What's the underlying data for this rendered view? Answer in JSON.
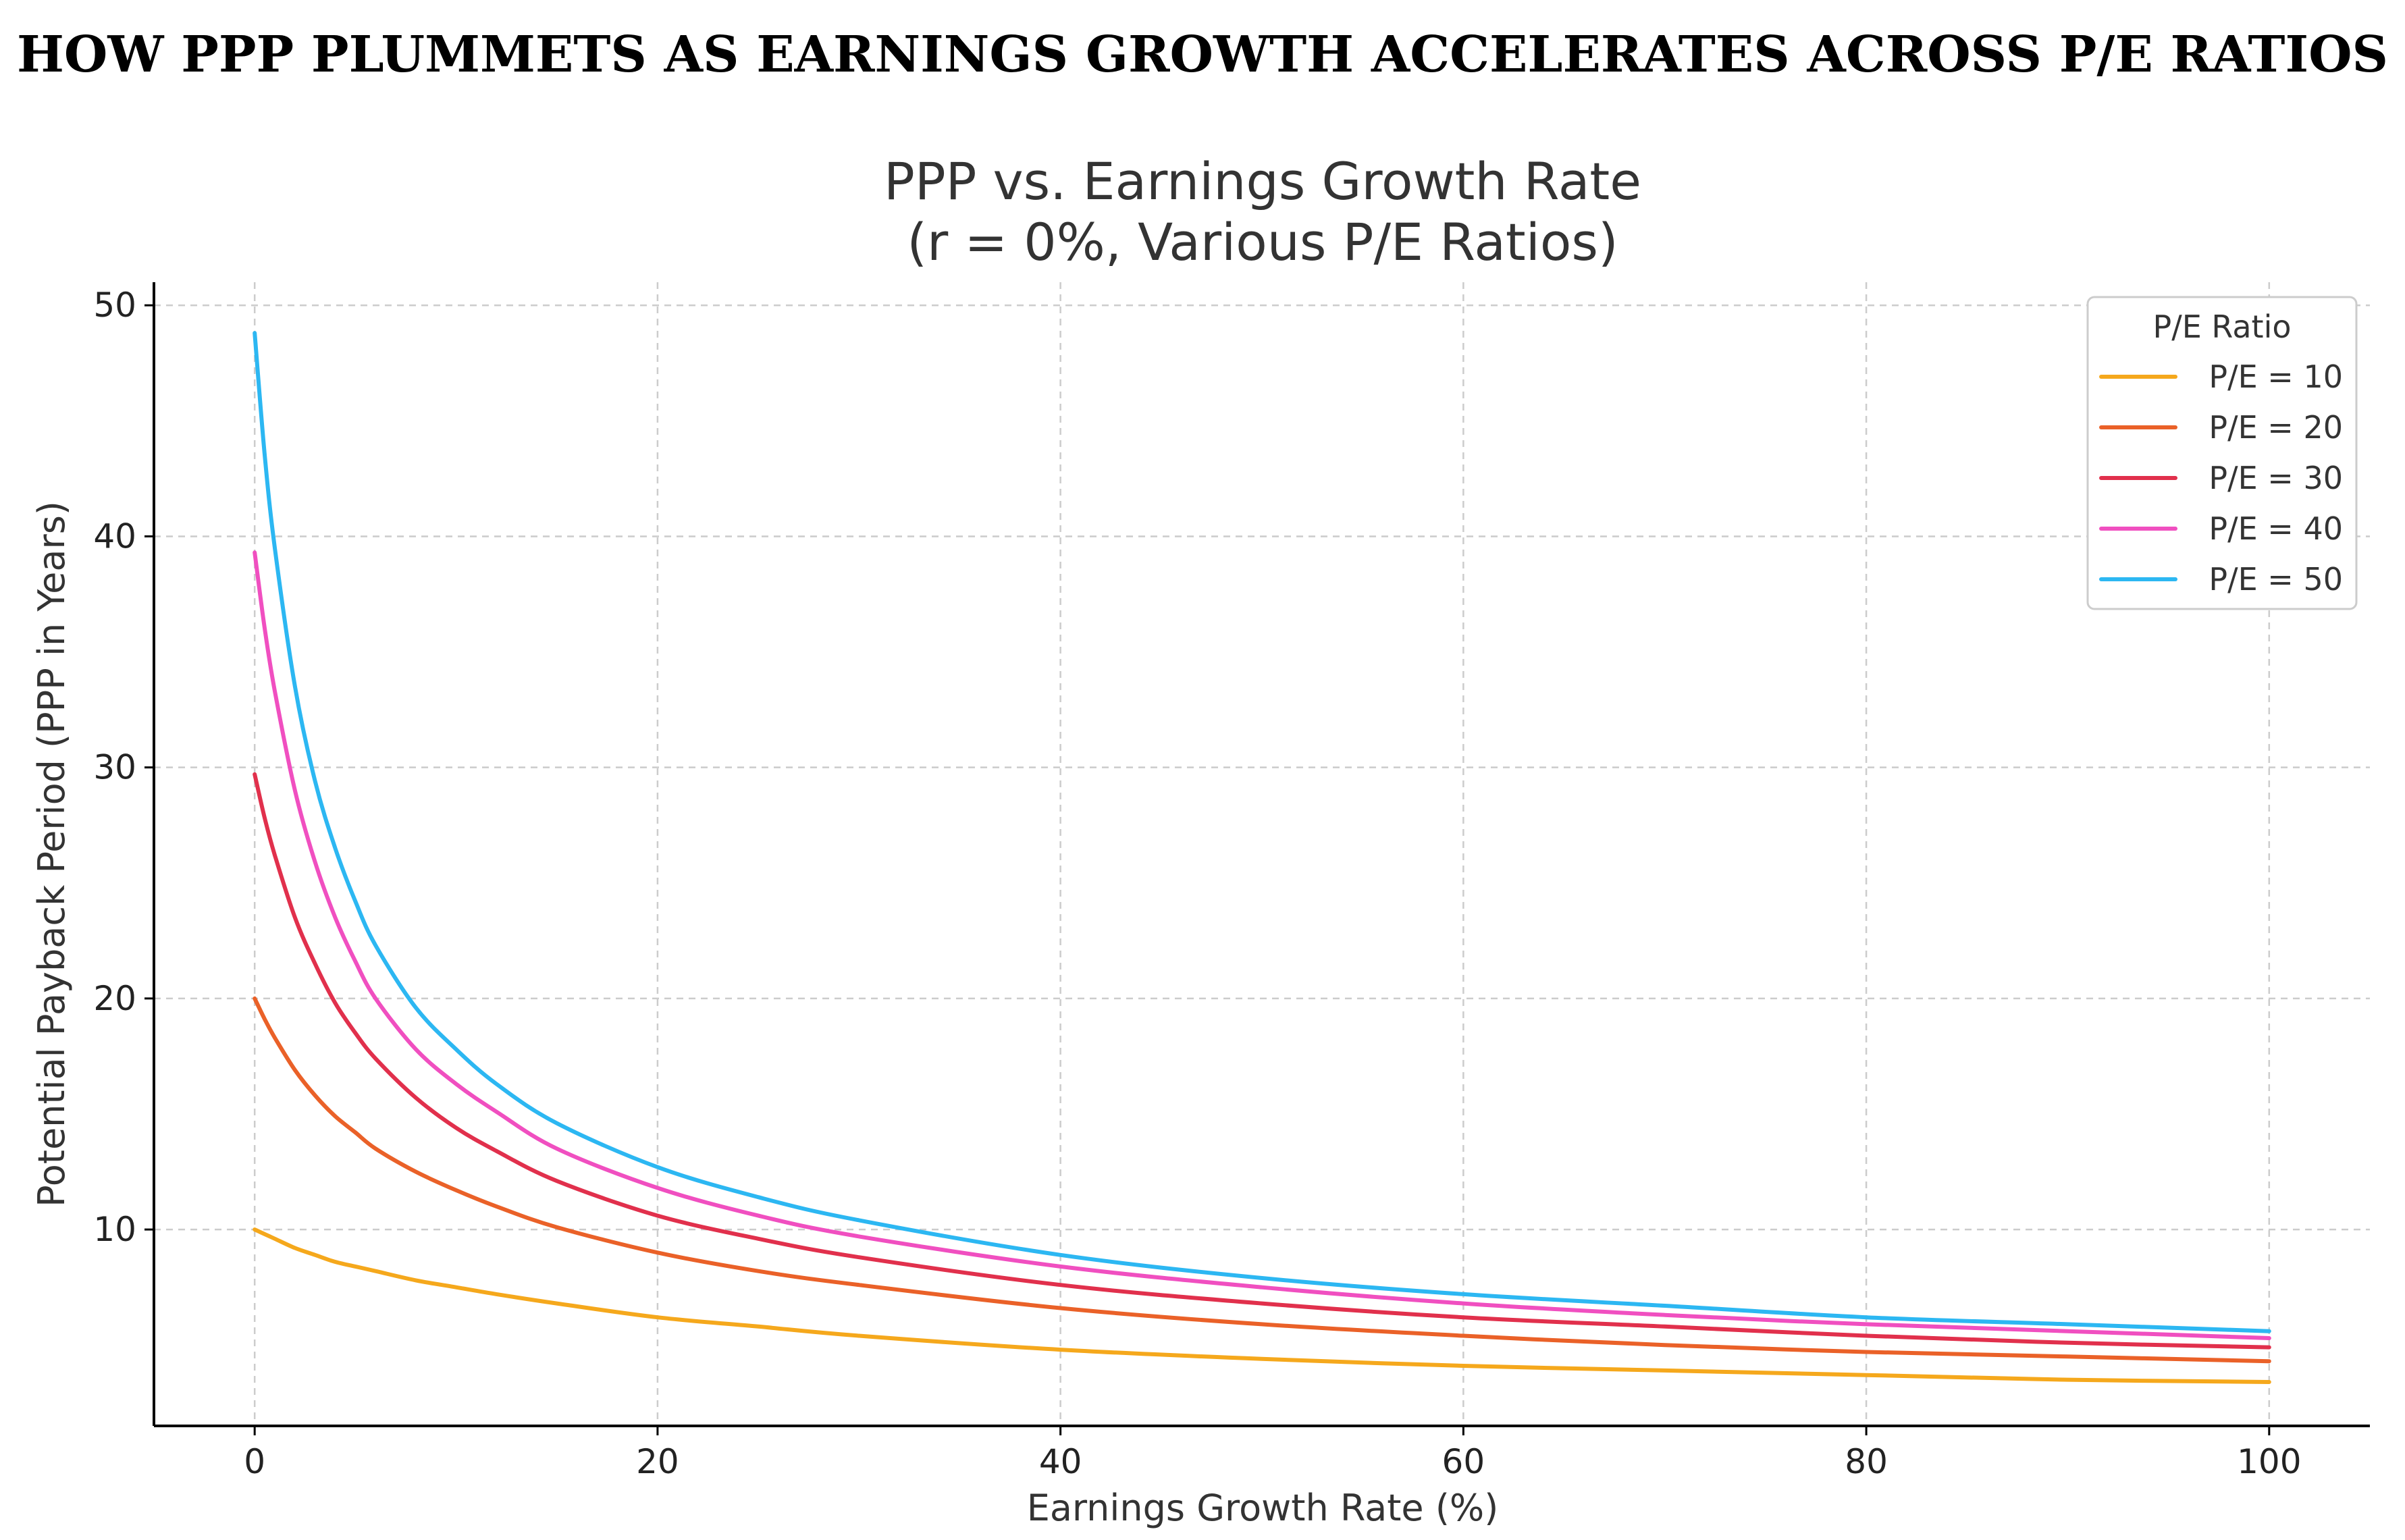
{
  "banner_title": "HOW PPP PLUMMETS AS EARNINGS GROWTH ACCELERATES ACROSS P/E RATIOS",
  "chart_data": {
    "type": "line",
    "title_lines": [
      "PPP vs. Earnings Growth Rate",
      "(r = 0%, Various P/E Ratios)"
    ],
    "xlabel": "Earnings Growth Rate (%)",
    "ylabel": "Potential Payback Period (PPP in Years)",
    "xlim": [
      -5,
      105
    ],
    "ylim": [
      1.5,
      51
    ],
    "x_ticks": [
      0,
      20,
      40,
      60,
      80,
      100
    ],
    "y_ticks": [
      10,
      20,
      30,
      40,
      50
    ],
    "grid": true,
    "legend": {
      "title": "P/E Ratio",
      "position": "top-right"
    },
    "x": [
      0,
      0.5,
      1,
      2,
      3,
      4,
      5,
      6,
      8,
      10,
      12,
      15,
      20,
      25,
      30,
      40,
      50,
      60,
      70,
      80,
      90,
      100
    ],
    "series": [
      {
        "name": "P/E = 10",
        "color": "#f5a81c",
        "values": [
          10.0,
          9.8,
          9.6,
          9.2,
          8.9,
          8.6,
          8.4,
          8.2,
          7.8,
          7.5,
          7.2,
          6.8,
          6.2,
          5.8,
          5.4,
          4.8,
          4.4,
          4.1,
          3.9,
          3.7,
          3.5,
          3.4
        ]
      },
      {
        "name": "P/E = 20",
        "color": "#ea6128",
        "values": [
          20.0,
          19.1,
          18.3,
          16.9,
          15.8,
          14.9,
          14.2,
          13.5,
          12.5,
          11.7,
          11.0,
          10.1,
          9.0,
          8.2,
          7.6,
          6.6,
          5.9,
          5.4,
          5.0,
          4.7,
          4.5,
          4.3
        ]
      },
      {
        "name": "P/E = 30",
        "color": "#e1304c",
        "values": [
          29.7,
          27.8,
          26.2,
          23.5,
          21.5,
          19.8,
          18.5,
          17.4,
          15.7,
          14.4,
          13.4,
          12.1,
          10.6,
          9.6,
          8.8,
          7.6,
          6.8,
          6.2,
          5.8,
          5.4,
          5.1,
          4.9
        ]
      },
      {
        "name": "P/E = 40",
        "color": "#f04fc0",
        "values": [
          39.3,
          36.0,
          33.3,
          29.0,
          25.9,
          23.5,
          21.6,
          20.0,
          17.8,
          16.3,
          15.1,
          13.5,
          11.8,
          10.6,
          9.7,
          8.4,
          7.5,
          6.8,
          6.3,
          5.9,
          5.6,
          5.3
        ]
      },
      {
        "name": "P/E = 50",
        "color": "#2cb7f2",
        "values": [
          48.8,
          43.5,
          39.5,
          33.5,
          29.4,
          26.5,
          24.2,
          22.3,
          19.6,
          17.8,
          16.3,
          14.6,
          12.7,
          11.4,
          10.4,
          8.9,
          7.9,
          7.2,
          6.7,
          6.2,
          5.9,
          5.6
        ]
      }
    ]
  }
}
